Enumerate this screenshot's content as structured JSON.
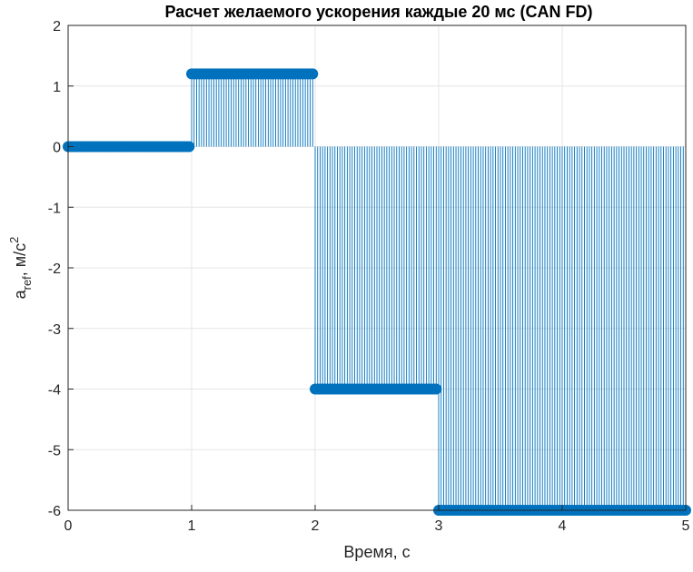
{
  "chart_data": {
    "type": "stem",
    "title": "Расчет желаемого ускорения каждые 20 мс (CAN FD)",
    "xlabel": "Время, с",
    "ylabel": {
      "base": "a",
      "sub": "ref",
      "mid": ", м/с",
      "sup": "2"
    },
    "xlim": [
      0,
      5
    ],
    "ylim": [
      -6,
      2
    ],
    "x_ticks": [
      "0",
      "1",
      "2",
      "3",
      "4",
      "5"
    ],
    "y_ticks": [
      "2",
      "1",
      "0",
      "-1",
      "-2",
      "-3",
      "-4",
      "-5",
      "-6"
    ],
    "grid": true,
    "sample_period_s": 0.02,
    "series": [
      {
        "color": "#0072bd",
        "segments": [
          {
            "from": 0,
            "to": 1,
            "value": 0
          },
          {
            "from": 1,
            "to": 2,
            "value": 1.2
          },
          {
            "from": 2,
            "to": 3,
            "value": -4
          },
          {
            "from": 3,
            "to": 5,
            "value": -6
          }
        ]
      }
    ]
  }
}
